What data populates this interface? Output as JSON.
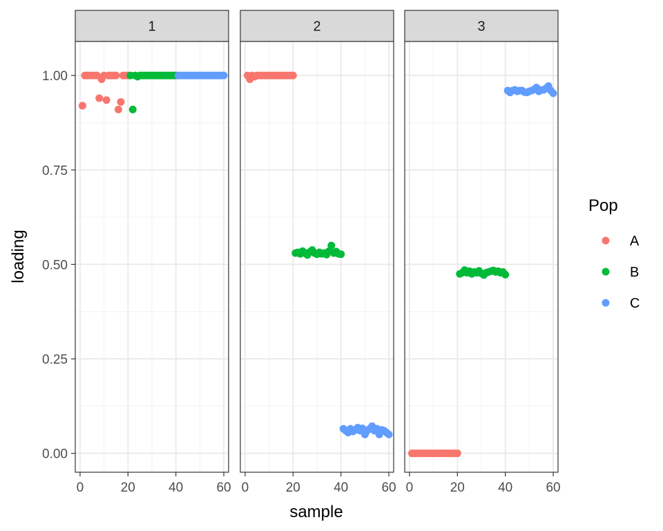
{
  "chart_data": {
    "type": "scatter",
    "xlabel": "sample",
    "ylabel": "loading",
    "xlim": [
      -2,
      62
    ],
    "ylim": [
      -0.05,
      1.09
    ],
    "x_ticks": [
      0,
      20,
      40,
      60
    ],
    "x_tick_labels": [
      "0",
      "20",
      "40",
      "60"
    ],
    "y_ticks": [
      0,
      0.25,
      0.5,
      0.75,
      1.0
    ],
    "y_tick_labels": [
      "0.00",
      "0.25",
      "0.50",
      "0.75",
      "1.00"
    ],
    "grid": true,
    "legend": {
      "title": "Pop",
      "placement": "right",
      "entries": [
        {
          "label": "A",
          "color": "#F8766D"
        },
        {
          "label": "B",
          "color": "#00BA38"
        },
        {
          "label": "C",
          "color": "#619CFF"
        }
      ]
    },
    "facets": [
      {
        "label": "1",
        "series": [
          {
            "name": "A",
            "color": "#F8766D",
            "points": [
              [
                1,
                0.92
              ],
              [
                2,
                1.0
              ],
              [
                3,
                1.0
              ],
              [
                4,
                1.0
              ],
              [
                5,
                1.0
              ],
              [
                6,
                1.0
              ],
              [
                7,
                1.0
              ],
              [
                8,
                0.94
              ],
              [
                9,
                0.99
              ],
              [
                10,
                1.0
              ],
              [
                11,
                0.935
              ],
              [
                12,
                1.0
              ],
              [
                13,
                1.0
              ],
              [
                14,
                1.0
              ],
              [
                15,
                1.0
              ],
              [
                16,
                0.91
              ],
              [
                17,
                0.93
              ],
              [
                18,
                1.0
              ],
              [
                19,
                1.0
              ],
              [
                20,
                1.0
              ]
            ]
          },
          {
            "name": "B",
            "color": "#00BA38",
            "points": [
              [
                21,
                1.0
              ],
              [
                22,
                0.91
              ],
              [
                23,
                1.0
              ],
              [
                24,
                0.997
              ],
              [
                25,
                1.0
              ],
              [
                26,
                1.0
              ],
              [
                27,
                1.0
              ],
              [
                28,
                1.0
              ],
              [
                29,
                1.0
              ],
              [
                30,
                1.0
              ],
              [
                31,
                1.0
              ],
              [
                32,
                1.0
              ],
              [
                33,
                1.0
              ],
              [
                34,
                1.0
              ],
              [
                35,
                1.0
              ],
              [
                36,
                1.0
              ],
              [
                37,
                1.0
              ],
              [
                38,
                1.0
              ],
              [
                39,
                1.0
              ],
              [
                40,
                1.0
              ]
            ]
          },
          {
            "name": "C",
            "color": "#619CFF",
            "points": [
              [
                41,
                1.0
              ],
              [
                42,
                1.0
              ],
              [
                43,
                1.0
              ],
              [
                44,
                1.0
              ],
              [
                45,
                1.0
              ],
              [
                46,
                1.0
              ],
              [
                47,
                1.0
              ],
              [
                48,
                1.0
              ],
              [
                49,
                1.0
              ],
              [
                50,
                1.0
              ],
              [
                51,
                1.0
              ],
              [
                52,
                1.0
              ],
              [
                53,
                1.0
              ],
              [
                54,
                1.0
              ],
              [
                55,
                1.0
              ],
              [
                56,
                1.0
              ],
              [
                57,
                1.0
              ],
              [
                58,
                1.0
              ],
              [
                59,
                1.0
              ],
              [
                60,
                1.0
              ]
            ]
          }
        ]
      },
      {
        "label": "2",
        "series": [
          {
            "name": "A",
            "color": "#F8766D",
            "points": [
              [
                1,
                1.0
              ],
              [
                2,
                0.99
              ],
              [
                3,
                1.0
              ],
              [
                4,
                0.997
              ],
              [
                5,
                1.0
              ],
              [
                6,
                1.0
              ],
              [
                7,
                1.0
              ],
              [
                8,
                1.0
              ],
              [
                9,
                1.0
              ],
              [
                10,
                1.0
              ],
              [
                11,
                1.0
              ],
              [
                12,
                1.0
              ],
              [
                13,
                1.0
              ],
              [
                14,
                1.0
              ],
              [
                15,
                1.0
              ],
              [
                16,
                1.0
              ],
              [
                17,
                1.0
              ],
              [
                18,
                1.0
              ],
              [
                19,
                1.0
              ],
              [
                20,
                1.0
              ]
            ]
          },
          {
            "name": "B",
            "color": "#00BA38",
            "points": [
              [
                21,
                0.53
              ],
              [
                22,
                0.532
              ],
              [
                23,
                0.528
              ],
              [
                24,
                0.535
              ],
              [
                25,
                0.53
              ],
              [
                26,
                0.525
              ],
              [
                27,
                0.533
              ],
              [
                28,
                0.538
              ],
              [
                29,
                0.53
              ],
              [
                30,
                0.527
              ],
              [
                31,
                0.532
              ],
              [
                32,
                0.528
              ],
              [
                33,
                0.53
              ],
              [
                34,
                0.526
              ],
              [
                35,
                0.535
              ],
              [
                36,
                0.55
              ],
              [
                37,
                0.53
              ],
              [
                38,
                0.534
              ],
              [
                39,
                0.528
              ],
              [
                40,
                0.527
              ]
            ]
          },
          {
            "name": "C",
            "color": "#619CFF",
            "points": [
              [
                41,
                0.065
              ],
              [
                42,
                0.06
              ],
              [
                43,
                0.055
              ],
              [
                44,
                0.065
              ],
              [
                45,
                0.058
              ],
              [
                46,
                0.062
              ],
              [
                47,
                0.068
              ],
              [
                48,
                0.06
              ],
              [
                49,
                0.066
              ],
              [
                50,
                0.05
              ],
              [
                51,
                0.06
              ],
              [
                52,
                0.065
              ],
              [
                53,
                0.072
              ],
              [
                54,
                0.06
              ],
              [
                55,
                0.065
              ],
              [
                56,
                0.05
              ],
              [
                57,
                0.062
              ],
              [
                58,
                0.06
              ],
              [
                59,
                0.055
              ],
              [
                60,
                0.05
              ]
            ]
          }
        ]
      },
      {
        "label": "3",
        "series": [
          {
            "name": "A",
            "color": "#F8766D",
            "points": [
              [
                1,
                0.0
              ],
              [
                2,
                0.0
              ],
              [
                3,
                0.0
              ],
              [
                4,
                0.0
              ],
              [
                5,
                0.0
              ],
              [
                6,
                0.0
              ],
              [
                7,
                0.0
              ],
              [
                8,
                0.0
              ],
              [
                9,
                0.0
              ],
              [
                10,
                0.0
              ],
              [
                11,
                0.0
              ],
              [
                12,
                0.0
              ],
              [
                13,
                0.0
              ],
              [
                14,
                0.0
              ],
              [
                15,
                0.0
              ],
              [
                16,
                0.0
              ],
              [
                17,
                0.0
              ],
              [
                18,
                0.0
              ],
              [
                19,
                0.0
              ],
              [
                20,
                0.0
              ]
            ]
          },
          {
            "name": "B",
            "color": "#00BA38",
            "points": [
              [
                21,
                0.475
              ],
              [
                22,
                0.478
              ],
              [
                23,
                0.485
              ],
              [
                24,
                0.478
              ],
              [
                25,
                0.482
              ],
              [
                26,
                0.475
              ],
              [
                27,
                0.48
              ],
              [
                28,
                0.478
              ],
              [
                29,
                0.483
              ],
              [
                30,
                0.476
              ],
              [
                31,
                0.472
              ],
              [
                32,
                0.478
              ],
              [
                33,
                0.48
              ],
              [
                34,
                0.482
              ],
              [
                35,
                0.484
              ],
              [
                36,
                0.48
              ],
              [
                37,
                0.482
              ],
              [
                38,
                0.478
              ],
              [
                39,
                0.48
              ],
              [
                40,
                0.473
              ]
            ]
          },
          {
            "name": "C",
            "color": "#619CFF",
            "points": [
              [
                41,
                0.96
              ],
              [
                42,
                0.955
              ],
              [
                43,
                0.96
              ],
              [
                44,
                0.962
              ],
              [
                45,
                0.958
              ],
              [
                46,
                0.96
              ],
              [
                47,
                0.96
              ],
              [
                48,
                0.956
              ],
              [
                49,
                0.955
              ],
              [
                50,
                0.958
              ],
              [
                51,
                0.96
              ],
              [
                52,
                0.963
              ],
              [
                53,
                0.968
              ],
              [
                54,
                0.958
              ],
              [
                55,
                0.962
              ],
              [
                56,
                0.962
              ],
              [
                57,
                0.966
              ],
              [
                58,
                0.972
              ],
              [
                59,
                0.96
              ],
              [
                60,
                0.953
              ]
            ]
          }
        ]
      }
    ]
  }
}
